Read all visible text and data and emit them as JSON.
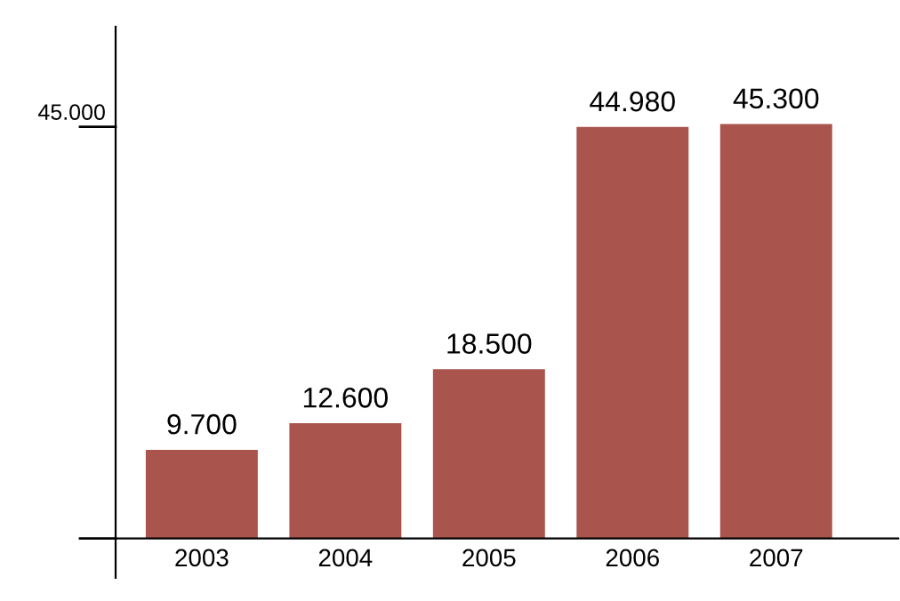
{
  "chart_data": {
    "type": "bar",
    "categories": [
      "2003",
      "2004",
      "2005",
      "2006",
      "2007"
    ],
    "values": [
      9700,
      12600,
      18500,
      44980,
      45300
    ],
    "value_labels": [
      "9.700",
      "12.600",
      "18.500",
      "44.980",
      "45.300"
    ],
    "color": "#a9544c",
    "ref_lines": [
      {
        "axis": "y",
        "value": 45000,
        "label": "45.000"
      }
    ],
    "grid": false,
    "legend": false
  }
}
